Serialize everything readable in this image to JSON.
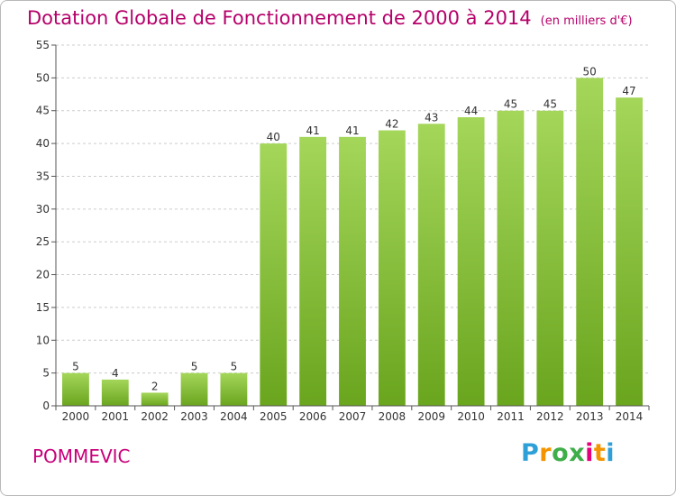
{
  "title": "Dotation Globale de Fonctionnement de 2000 à 2014",
  "subtitle": "(en milliers d'€)",
  "commune": "POMMEVIC",
  "logo": "Proxiti",
  "colors": {
    "title": "#b5006a",
    "bar_light": "#a4d65a",
    "bar_dark": "#6aa51e",
    "grid": "#cccccc",
    "axis": "#555555"
  },
  "chart_data": {
    "type": "bar",
    "categories": [
      "2000",
      "2001",
      "2002",
      "2003",
      "2004",
      "2005",
      "2006",
      "2007",
      "2008",
      "2009",
      "2010",
      "2011",
      "2012",
      "2013",
      "2014"
    ],
    "values": [
      5,
      4,
      2,
      5,
      5,
      40,
      41,
      41,
      42,
      43,
      44,
      45,
      45,
      50,
      47
    ],
    "ylim": [
      0,
      55
    ],
    "yticks": [
      0,
      5,
      10,
      15,
      20,
      25,
      30,
      35,
      40,
      45,
      50,
      55
    ],
    "grid": true,
    "data_labels": true
  }
}
